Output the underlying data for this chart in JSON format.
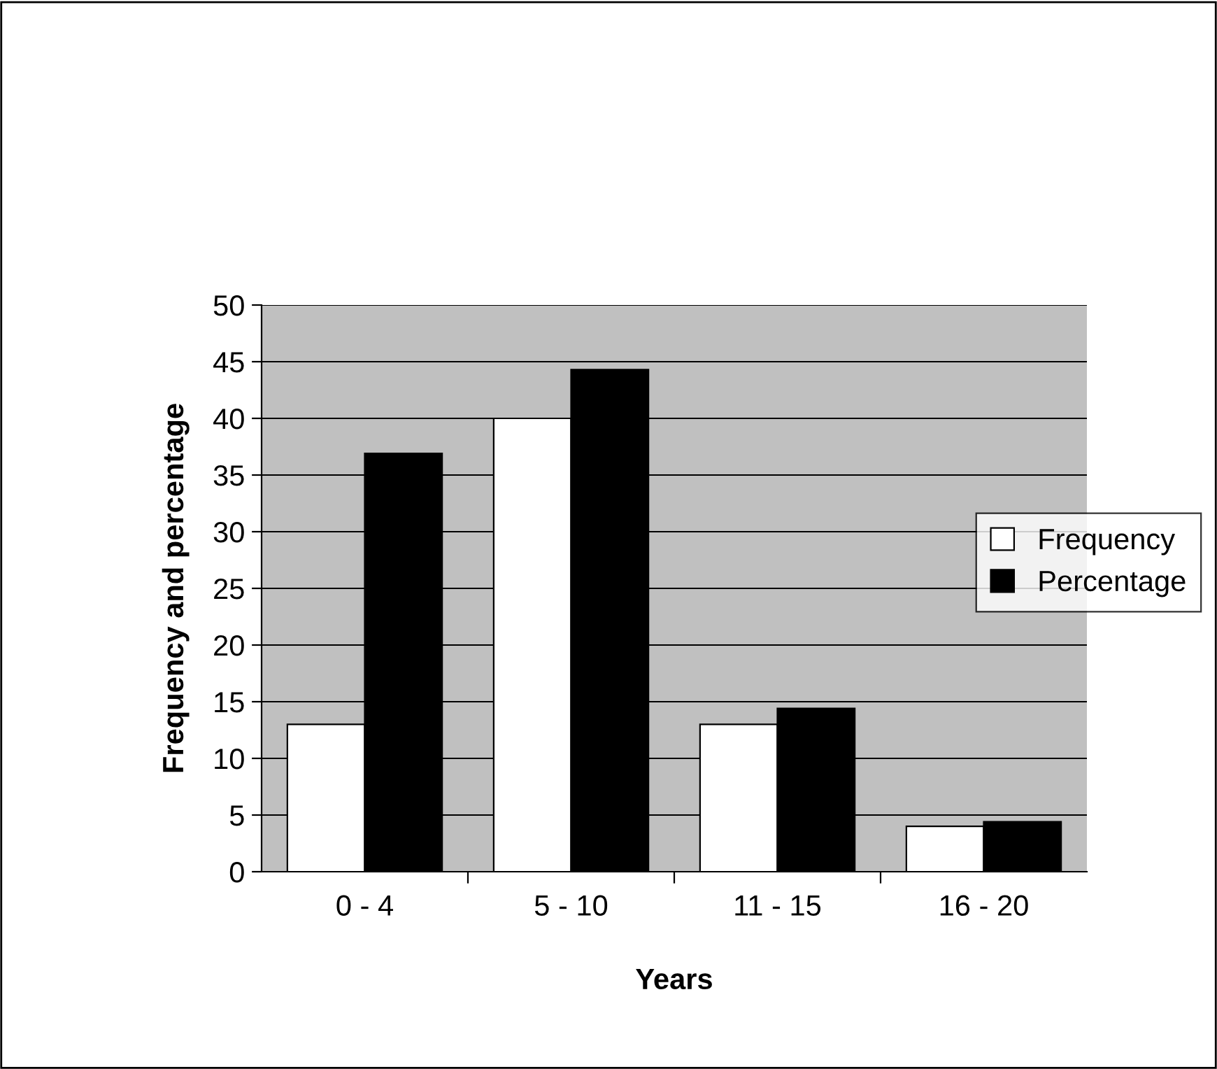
{
  "chart_data": {
    "type": "bar",
    "xlabel": "Years",
    "ylabel": "Frequency and percentage",
    "categories": [
      "0 - 4",
      "5 - 10",
      "11 - 15",
      "16 - 20"
    ],
    "series": [
      {
        "name": "Frequency",
        "color": "#ffffff",
        "values": [
          13,
          40,
          13,
          4
        ]
      },
      {
        "name": "Percentage",
        "color": "#000000",
        "values": [
          36.9,
          44.3,
          14.4,
          4.4
        ]
      }
    ],
    "ylim": [
      0,
      50
    ],
    "yticks": [
      0,
      5,
      10,
      15,
      20,
      25,
      30,
      35,
      40,
      45,
      50
    ],
    "grid": "y",
    "legend": "right"
  }
}
